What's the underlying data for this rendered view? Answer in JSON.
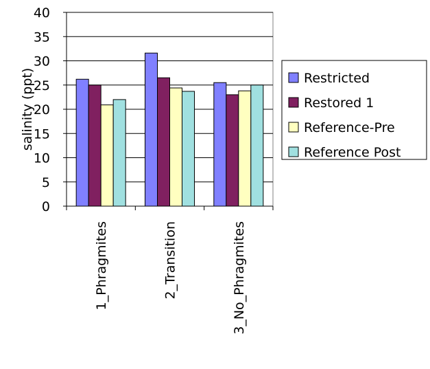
{
  "chart_data": {
    "type": "bar",
    "title": "",
    "xlabel": "",
    "ylabel": "salinity (ppt)",
    "ylim": [
      0,
      40
    ],
    "yticks": [
      0,
      5,
      10,
      15,
      20,
      25,
      30,
      35,
      40
    ],
    "grid": true,
    "legend_position": "right",
    "categories": [
      "1_Phragmites",
      "2_Transition",
      "3_No_Phragmites"
    ],
    "series": [
      {
        "name": "Restricted",
        "color": "#8080ff",
        "values": [
          26.2,
          31.6,
          25.5
        ]
      },
      {
        "name": "Restored 1",
        "color": "#802060",
        "values": [
          25.0,
          26.5,
          23.0
        ]
      },
      {
        "name": "Reference-Pre",
        "color": "#ffffc0",
        "values": [
          20.9,
          24.4,
          23.8
        ]
      },
      {
        "name": "Reference Post",
        "color": "#a0e0e0",
        "values": [
          22.0,
          23.7,
          25.0
        ]
      }
    ]
  }
}
